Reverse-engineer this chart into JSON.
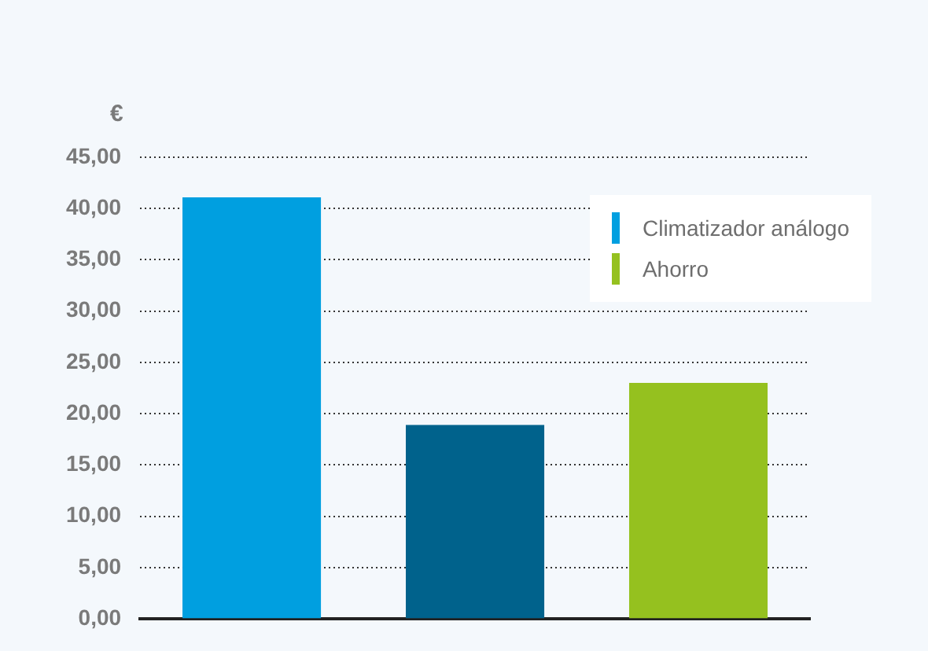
{
  "chart_data": {
    "type": "bar",
    "ylabel": "€",
    "categories": [
      null,
      null,
      null
    ],
    "series": [
      {
        "name": "Climatizador análogo",
        "color": "#009fe0",
        "values": [
          41.1,
          null,
          null
        ]
      },
      {
        "color": "#00628c",
        "values": [
          null,
          18.9,
          null
        ]
      },
      {
        "name": "Ahorro",
        "color": "#95c11f",
        "values": [
          null,
          null,
          23.0
        ]
      }
    ],
    "ylim": [
      0,
      45
    ],
    "yticks": [
      {
        "value": 0,
        "label": "0,00"
      },
      {
        "value": 5,
        "label": "5,00"
      },
      {
        "value": 10,
        "label": "10,00"
      },
      {
        "value": 15,
        "label": "15,00"
      },
      {
        "value": 20,
        "label": "20,00"
      },
      {
        "value": 25,
        "label": "25,00"
      },
      {
        "value": 30,
        "label": "30,00"
      },
      {
        "value": 35,
        "label": "35,00"
      },
      {
        "value": 40,
        "label": "40,00"
      },
      {
        "value": 45,
        "label": "45,00"
      }
    ],
    "grid": "y",
    "legend": "top right"
  }
}
